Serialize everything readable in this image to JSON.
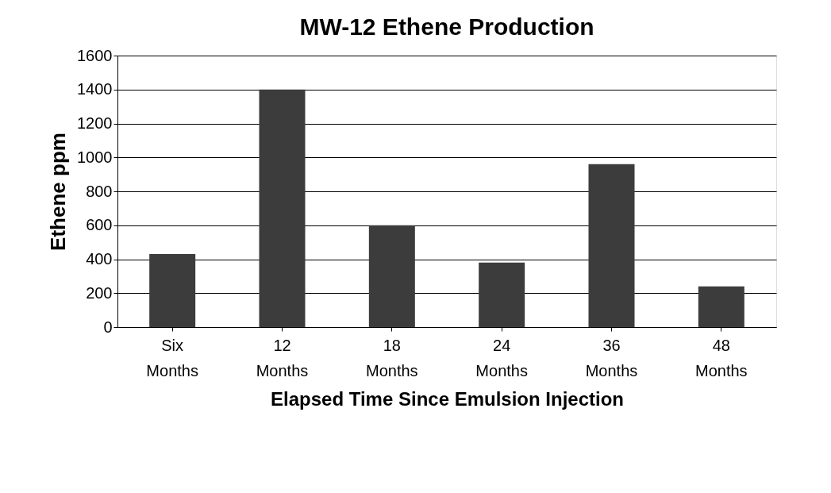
{
  "chart_data": {
    "type": "bar",
    "title": "MW-12 Ethene Production",
    "xlabel": "Elapsed Time Since Emulsion Injection",
    "ylabel": "Ethene ppm",
    "categories": [
      "Six Months",
      "12 Months",
      "18 Months",
      "24 Months",
      "36 Months",
      "48 Months"
    ],
    "values": [
      430,
      1400,
      600,
      380,
      960,
      240
    ],
    "color": "#3c3c3c",
    "ylim": [
      0,
      1600
    ],
    "yticks": [
      0,
      200,
      400,
      600,
      800,
      1000,
      1200,
      1400,
      1600
    ],
    "grid": "y"
  }
}
